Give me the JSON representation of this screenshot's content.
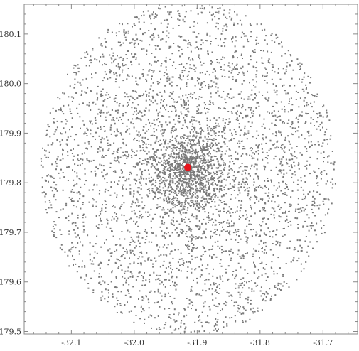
{
  "chart_data": {
    "type": "scatter",
    "title": "",
    "xlabel": "",
    "ylabel": "",
    "xlim": [
      -32.175,
      -31.645
    ],
    "ylim": [
      179.495,
      180.16
    ],
    "x_ticks": [
      -32.1,
      -32.0,
      -31.9,
      -31.8,
      -31.7
    ],
    "x_tick_labels": [
      "-32.1",
      "-32.0",
      "-31.9",
      "-31.8",
      "-31.7"
    ],
    "y_ticks": [
      179.5,
      179.6,
      179.7,
      179.8,
      179.9,
      180.0,
      180.1
    ],
    "y_tick_labels": [
      "179.5",
      "179.6",
      "179.7",
      "179.8",
      "179.9",
      "180.0",
      "180.1"
    ],
    "grid": false,
    "series": [
      {
        "kind": "cloud",
        "color": "#7a7a7a",
        "distribution": "disk with central concentration",
        "center": [
          -31.915,
          179.83
        ],
        "radius_x": 0.235,
        "radius_y": 0.335,
        "point_count": 4200
      },
      {
        "kind": "marker",
        "color": "#e8141c",
        "x": [
          -31.915
        ],
        "y": [
          179.831
        ]
      }
    ]
  }
}
